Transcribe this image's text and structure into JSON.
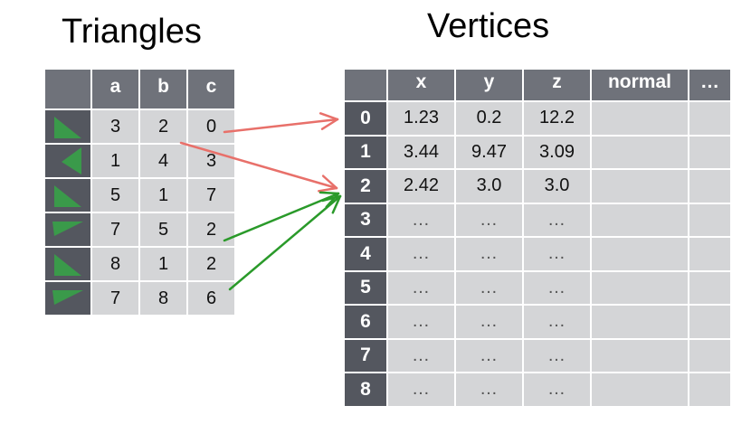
{
  "titles": {
    "triangles": "Triangles",
    "vertices": "Vertices"
  },
  "triangles": {
    "columns": [
      "a",
      "b",
      "c"
    ],
    "rows": [
      {
        "icon": "triangle-right-icon",
        "a": "3",
        "b": "2",
        "c": "0"
      },
      {
        "icon": "triangle-left-icon",
        "a": "1",
        "b": "4",
        "c": "3"
      },
      {
        "icon": "triangle-right-icon",
        "a": "5",
        "b": "1",
        "c": "7"
      },
      {
        "icon": "triangle-down-icon",
        "a": "7",
        "b": "5",
        "c": "2"
      },
      {
        "icon": "triangle-right-icon",
        "a": "8",
        "b": "1",
        "c": "2"
      },
      {
        "icon": "triangle-down-icon",
        "a": "7",
        "b": "8",
        "c": "6"
      }
    ]
  },
  "vertices": {
    "columns": [
      "x",
      "y",
      "z",
      "normal",
      "…"
    ],
    "rows": [
      {
        "index": "0",
        "x": "1.23",
        "y": "0.2",
        "z": "12.2"
      },
      {
        "index": "1",
        "x": "3.44",
        "y": "9.47",
        "z": "3.09"
      },
      {
        "index": "2",
        "x": "2.42",
        "y": "3.0",
        "z": "3.0"
      },
      {
        "index": "3",
        "x": "…",
        "y": "…",
        "z": "…"
      },
      {
        "index": "4",
        "x": "…",
        "y": "…",
        "z": "…"
      },
      {
        "index": "5",
        "x": "…",
        "y": "…",
        "z": "…"
      },
      {
        "index": "6",
        "x": "…",
        "y": "…",
        "z": "…"
      },
      {
        "index": "7",
        "x": "…",
        "y": "…",
        "z": "…"
      },
      {
        "index": "8",
        "x": "…",
        "y": "…",
        "z": "…"
      }
    ]
  },
  "colors": {
    "triangle_icon": "#3a9a4a",
    "arrow_red": "#e8706a",
    "arrow_green": "#2a9a2a",
    "header": "#6f727a",
    "index_cell": "#54575f",
    "body_cell": "#d4d5d7"
  }
}
